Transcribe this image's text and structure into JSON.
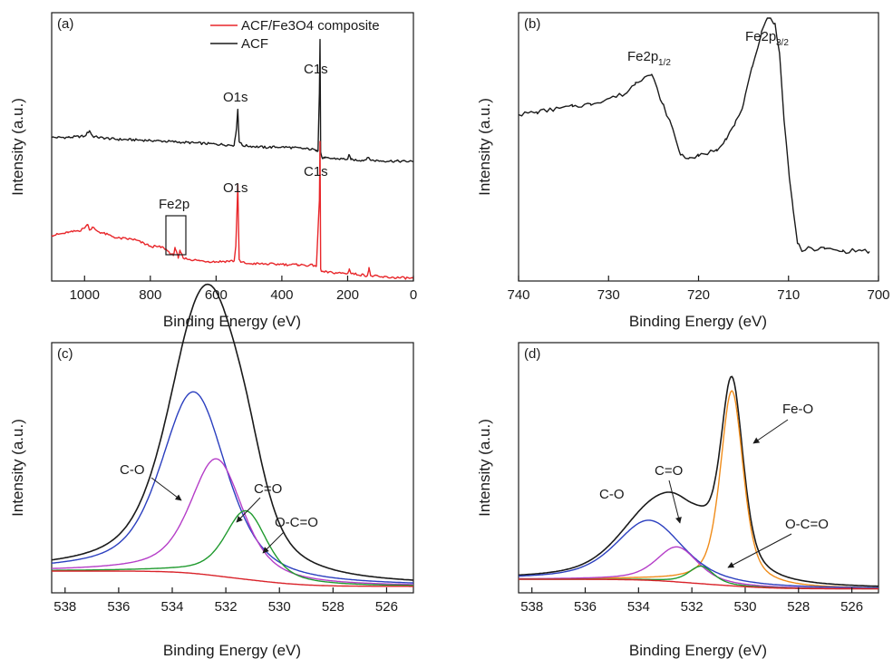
{
  "figure": {
    "colors": {
      "black": "#1a1a1a",
      "red": "#e8262a",
      "blue": "#2b3fbf",
      "magenta": "#b53ec8",
      "green": "#1f9a2e",
      "orange": "#f08c1a",
      "bg_red": "#d9232a"
    }
  },
  "chart_data": [
    {
      "panel": "(a)",
      "type": "line",
      "xlabel": "Binding Energy (eV)",
      "ylabel": "Intensity (a.u.)",
      "xlim": [
        1100,
        0
      ],
      "x_reversed": true,
      "xticks": [
        1000,
        800,
        600,
        400,
        200,
        0
      ],
      "ylim": [
        0,
        100
      ],
      "legend": {
        "placement": "top-right",
        "entries": [
          {
            "name": "ACF/Fe3O4 composite",
            "color": "#e8262a"
          },
          {
            "name": "ACF",
            "color": "#1a1a1a"
          }
        ]
      },
      "series": [
        {
          "name": "ACF",
          "color": "#1a1a1a",
          "x": [
            1100,
            1050,
            1000,
            985,
            975,
            960,
            900,
            800,
            700,
            600,
            545,
            538,
            534,
            530,
            520,
            450,
            400,
            300,
            295,
            290,
            286,
            284,
            282,
            278,
            270,
            200,
            195,
            190,
            150,
            140,
            130,
            100,
            0
          ],
          "y": [
            53.5,
            53.5,
            54,
            56,
            54,
            53.5,
            52.8,
            52.4,
            51.7,
            51.0,
            50.6,
            57,
            64,
            52,
            50.5,
            49.8,
            50.0,
            49.0,
            48.8,
            48.5,
            70,
            90,
            48,
            46,
            45.8,
            45.4,
            47,
            45.2,
            45.0,
            46,
            45.0,
            44.8,
            44.5
          ]
        },
        {
          "name": "ACF/Fe3O4 composite",
          "color": "#e8262a",
          "x": [
            1100,
            1050,
            1010,
            990,
            985,
            975,
            960,
            900,
            850,
            800,
            760,
            730,
            725,
            715,
            710,
            700,
            650,
            600,
            545,
            540,
            534,
            530,
            525,
            500,
            400,
            350,
            300,
            295,
            286,
            284,
            282,
            278,
            270,
            200,
            195,
            190,
            140,
            135,
            130,
            100,
            0
          ],
          "y": [
            17,
            18,
            19,
            21,
            19,
            20,
            18.5,
            16,
            15.5,
            13,
            12.5,
            9.5,
            12.5,
            8.5,
            11.5,
            8.5,
            7.5,
            7.2,
            7.5,
            13,
            36,
            8,
            7,
            6.5,
            6.2,
            6.0,
            5.8,
            5.5,
            30,
            52,
            4.5,
            3.5,
            3.3,
            2.8,
            4.5,
            2.8,
            2.0,
            5,
            2.0,
            1.5,
            1.0
          ]
        }
      ],
      "annotations": [
        {
          "text": "C1s"
        },
        {
          "text": "O1s"
        },
        {
          "text": "C1s"
        },
        {
          "text": "O1s"
        },
        {
          "text": "Fe2p"
        }
      ]
    },
    {
      "panel": "(b)",
      "type": "line",
      "xlabel": "Binding Energy (eV)",
      "ylabel": "Intensity (a.u.)",
      "xlim": [
        740,
        700
      ],
      "x_reversed": true,
      "xticks": [
        740,
        730,
        720,
        710,
        700
      ],
      "ylim": [
        0,
        100
      ],
      "series": [
        {
          "name": "Fe2p",
          "color": "#1a1a1a",
          "x": [
            740,
            738,
            736,
            734,
            732,
            730,
            728,
            727,
            726,
            725.2,
            724,
            723,
            722,
            721,
            720,
            718,
            717,
            716,
            715,
            714,
            713,
            712.5,
            712,
            711.5,
            711,
            710.5,
            710,
            709.5,
            709,
            708.5,
            708,
            706,
            704,
            702,
            701
          ],
          "y": [
            62,
            63,
            64,
            65,
            66,
            68,
            70,
            74,
            76,
            77,
            66,
            58,
            47,
            46,
            46.5,
            49,
            53,
            58,
            66,
            80,
            93,
            97,
            98,
            96,
            85,
            60,
            42,
            27,
            14,
            11,
            12,
            12,
            11,
            11.5,
            11
          ]
        }
      ],
      "annotations": [
        {
          "text": "Fe2p",
          "subscript": "1/2"
        },
        {
          "text": "Fe2p",
          "subscript": "3/2"
        }
      ]
    },
    {
      "panel": "(c)",
      "type": "line",
      "xlabel": "Binding Energy (eV)",
      "ylabel": "Intensity (a.u.)",
      "xlim": [
        538.5,
        525
      ],
      "x_reversed": true,
      "xticks": [
        538,
        536,
        534,
        532,
        530,
        528,
        526
      ],
      "series": [
        {
          "name": "envelope",
          "color": "#1a1a1a",
          "peaks": [
            {
              "center": 533.2,
              "height": 45,
              "width": 1.55
            },
            {
              "center": 532.35,
              "height": 29,
              "width": 1.25
            },
            {
              "center": 531.25,
              "height": 17,
              "width": 1.0
            }
          ]
        },
        {
          "name": "C-O",
          "color": "#2b3fbf",
          "peaks": [
            {
              "center": 533.2,
              "height": 45,
              "width": 1.55
            }
          ]
        },
        {
          "name": "C=O",
          "color": "#b53ec8",
          "peaks": [
            {
              "center": 532.35,
              "height": 29,
              "width": 1.25
            }
          ]
        },
        {
          "name": "O-C=O",
          "color": "#1f9a2e",
          "peaks": [
            {
              "center": 531.25,
              "height": 17,
              "width": 1.0
            }
          ]
        },
        {
          "name": "background",
          "color": "#d9232a"
        }
      ],
      "annotations": [
        {
          "text": "C-O"
        },
        {
          "text": "C=O"
        },
        {
          "text": "O-C=O"
        }
      ]
    },
    {
      "panel": "(d)",
      "type": "line",
      "xlabel": "Binding Energy (eV)",
      "ylabel": "Intensity (a.u.)",
      "xlim": [
        538.5,
        525
      ],
      "x_reversed": true,
      "xticks": [
        538,
        536,
        534,
        532,
        530,
        528,
        526
      ],
      "series": [
        {
          "name": "envelope",
          "color": "#1a1a1a",
          "peaks": [
            {
              "center": 530.5,
              "height": 78,
              "width": 0.55
            },
            {
              "center": 533.6,
              "height": 24,
              "width": 1.6
            },
            {
              "center": 532.55,
              "height": 14,
              "width": 1.0
            },
            {
              "center": 531.65,
              "height": 7,
              "width": 0.6
            }
          ]
        },
        {
          "name": "Fe-O",
          "color": "#f08c1a",
          "peaks": [
            {
              "center": 530.5,
              "height": 78,
              "width": 0.55
            }
          ]
        },
        {
          "name": "C-O",
          "color": "#2b3fbf",
          "peaks": [
            {
              "center": 533.6,
              "height": 24,
              "width": 1.6
            }
          ]
        },
        {
          "name": "C=O",
          "color": "#b53ec8",
          "peaks": [
            {
              "center": 532.55,
              "height": 14,
              "width": 1.0
            }
          ]
        },
        {
          "name": "O-C=O",
          "color": "#1f9a2e",
          "peaks": [
            {
              "center": 531.65,
              "height": 7,
              "width": 0.6
            }
          ]
        },
        {
          "name": "background",
          "color": "#d9232a"
        }
      ],
      "annotations": [
        {
          "text": "Fe-O"
        },
        {
          "text": "C=O"
        },
        {
          "text": "C-O"
        },
        {
          "text": "O-C=O"
        }
      ]
    }
  ]
}
